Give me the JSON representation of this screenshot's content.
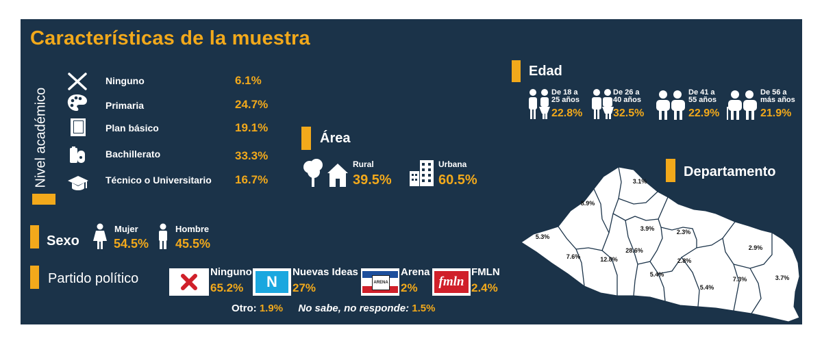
{
  "title": "Características de la muestra",
  "colors": {
    "background": "#1b3349",
    "accent": "#f2a91b",
    "text": "#ffffff"
  },
  "nivel_academico": {
    "label": "Nivel académico",
    "items": [
      {
        "icon": "x-mark-icon",
        "label": "Ninguno",
        "value": "6.1%"
      },
      {
        "icon": "palette-icon",
        "label": "Primaria",
        "value": "24.7%"
      },
      {
        "icon": "book-icon",
        "label": "Plan básico",
        "value": "19.1%"
      },
      {
        "icon": "flask-icon",
        "label": "Bachillerato",
        "value": "33.3%"
      },
      {
        "icon": "graduation-cap-icon",
        "label": "Técnico o Universitario",
        "value": "16.7%"
      }
    ]
  },
  "area": {
    "label": "Área",
    "rural": {
      "label": "Rural",
      "value": "39.5%"
    },
    "urbana": {
      "label": "Urbana",
      "value": "60.5%"
    }
  },
  "edad": {
    "label": "Edad",
    "groups": [
      {
        "label_line1": "De 18 a",
        "label_line2": "25 años",
        "value": "22.8%"
      },
      {
        "label_line1": "De 26 a",
        "label_line2": "40 años",
        "value": "32.5%"
      },
      {
        "label_line1": "De 41 a",
        "label_line2": "55 años",
        "value": "22.9%"
      },
      {
        "label_line1": "De 56 a",
        "label_line2": "más años",
        "value": "21.9%"
      }
    ]
  },
  "sexo": {
    "label": "Sexo",
    "mujer": {
      "label": "Mujer",
      "value": "54.5%"
    },
    "hombre": {
      "label": "Hombre",
      "value": "45.5%"
    }
  },
  "partido": {
    "label": "Partido político",
    "items": [
      {
        "logo": "ninguno-logo",
        "label": "Ninguno",
        "value": "65.2%"
      },
      {
        "logo": "nuevas-ideas-logo",
        "logo_text": "N",
        "label": "Nuevas Ideas",
        "value": "27%"
      },
      {
        "logo": "arena-logo",
        "logo_text": "ARENA",
        "label": "Arena",
        "value": "2%"
      },
      {
        "logo": "fmln-logo",
        "logo_text": "fmln",
        "label": "FMLN",
        "value": "2.4%"
      }
    ],
    "otro_label": "Otro:",
    "otro_value": "1.9%",
    "nsnr_label": "No sabe, no responde:",
    "nsnr_value": "1.5%"
  },
  "departamento": {
    "label": "Departamento",
    "values": [
      "3.1%",
      "8.9%",
      "5.3%",
      "3.9%",
      "2.3%",
      "7.6%",
      "12.8%",
      "28.6%",
      "2.8%",
      "2.9%",
      "5.4%",
      "5.4%",
      "7.3%",
      "3.7%"
    ]
  }
}
